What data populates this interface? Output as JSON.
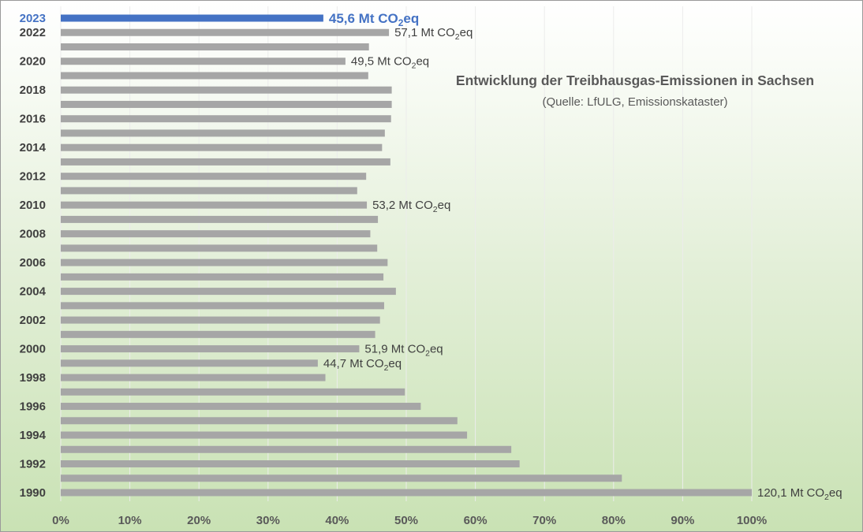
{
  "chart_data": {
    "type": "bar",
    "orientation": "horizontal",
    "title": "Entwicklung der Treibhausgas-Emissionen in Sachsen",
    "subtitle": "(Quelle: LfULG, Emissionskataster)",
    "categories": [
      "1990",
      "1991",
      "1992",
      "1993",
      "1994",
      "1995",
      "1996",
      "1997",
      "1998",
      "1999",
      "2000",
      "2001",
      "2002",
      "2003",
      "2004",
      "2005",
      "2006",
      "2007",
      "2008",
      "2009",
      "2010",
      "2011",
      "2012",
      "2013",
      "2014",
      "2015",
      "2016",
      "2017",
      "2018",
      "2019",
      "2020",
      "2021",
      "2022",
      "2023"
    ],
    "category_tick_labels": [
      "1990",
      "",
      "1992",
      "",
      "1994",
      "",
      "1996",
      "",
      "1998",
      "",
      "2000",
      "",
      "2002",
      "",
      "2004",
      "",
      "2006",
      "",
      "2008",
      "",
      "2010",
      "",
      "2012",
      "",
      "2014",
      "",
      "2016",
      "",
      "2018",
      "",
      "2020",
      "",
      "2022",
      "2023"
    ],
    "values_percent": [
      100,
      81.2,
      66.4,
      65.2,
      58.8,
      57.4,
      52.1,
      49.8,
      38.3,
      37.2,
      43.2,
      45.5,
      46.2,
      46.8,
      48.5,
      46.7,
      47.3,
      45.8,
      44.8,
      45.9,
      44.3,
      42.9,
      44.2,
      47.7,
      46.5,
      46.9,
      47.8,
      47.9,
      47.9,
      44.5,
      41.2,
      44.6,
      47.5,
      38.0
    ],
    "xlim": [
      0,
      100
    ],
    "x_ticks": [
      "0%",
      "10%",
      "20%",
      "30%",
      "40%",
      "50%",
      "60%",
      "70%",
      "80%",
      "90%",
      "100%"
    ],
    "grid": "vertical",
    "highlight": {
      "category": "2023",
      "color": "#4472c4"
    },
    "bar_color": "#a6a6a6",
    "data_labels": [
      {
        "category": "2023",
        "value": "45,6",
        "unit": "Mt CO",
        "sub": "2",
        "suffix": "eq",
        "highlight": true
      },
      {
        "category": "2022",
        "value": "57,1",
        "unit": "Mt CO",
        "sub": "2",
        "suffix": "eq"
      },
      {
        "category": "2020",
        "value": "49,5",
        "unit": "Mt CO",
        "sub": "2",
        "suffix": "eq"
      },
      {
        "category": "2010",
        "value": "53,2",
        "unit": "Mt CO",
        "sub": "2",
        "suffix": "eq"
      },
      {
        "category": "2000",
        "value": "51,9",
        "unit": "Mt CO",
        "sub": "2",
        "suffix": "eq"
      },
      {
        "category": "1999",
        "value": "44,7",
        "unit": "Mt CO",
        "sub": "2",
        "suffix": "eq"
      },
      {
        "category": "1990",
        "value": "120,1",
        "unit": "Mt CO",
        "sub": "2",
        "suffix": "eq"
      }
    ]
  }
}
